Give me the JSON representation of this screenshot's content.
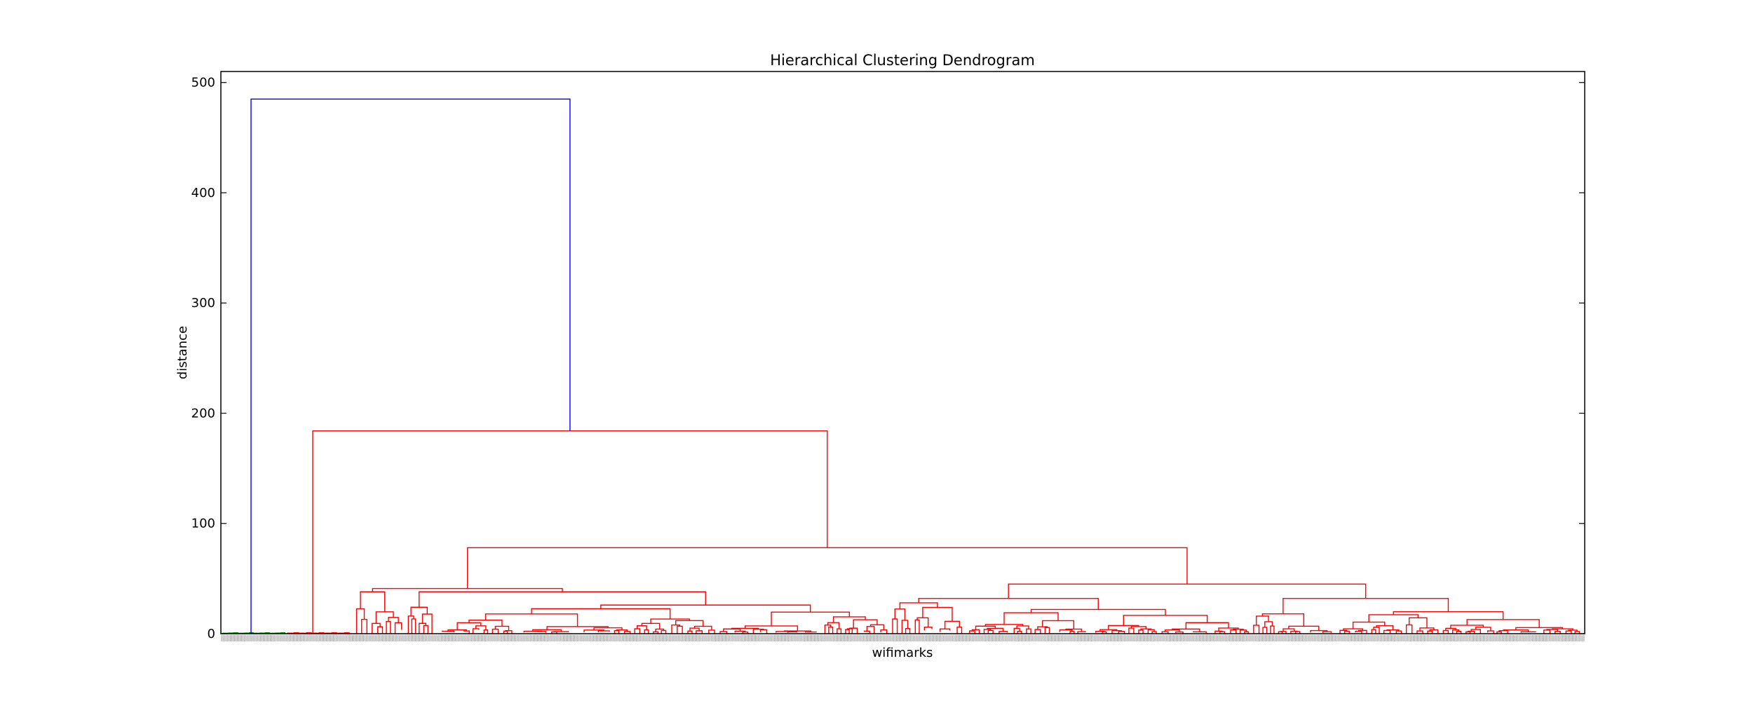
{
  "chart_data": {
    "type": "dendrogram",
    "title": "Hierarchical Clustering Dendrogram",
    "xlabel": "wifimarks",
    "ylabel": "distance",
    "ylim": [
      0,
      510
    ],
    "yticks": [
      0,
      100,
      200,
      300,
      400,
      500
    ],
    "grid": false,
    "colors": {
      "root_link": "#0000ff",
      "cluster_links": "#ff0000",
      "small_cluster_links": "#008000",
      "axes": "#000000",
      "background": "#ffffff"
    },
    "leaf_count_approx": 950,
    "leaf_labels_legible": false,
    "top_merges": [
      {
        "name": "root",
        "height": 485,
        "color": "blue",
        "left_child": "small-cluster",
        "right_child": "main-cluster"
      },
      {
        "name": "main-cluster",
        "height": 184,
        "color": "red",
        "left_child": "left-branch",
        "right_child": "right-branch"
      },
      {
        "name": "right-branch",
        "height": 78,
        "color": "red",
        "left_child": "right-left-branch",
        "right_child": "right-right-branch"
      },
      {
        "name": "right-right-branch",
        "height": 45,
        "color": "red"
      },
      {
        "name": "right-left-branch",
        "height": 41,
        "color": "red"
      },
      {
        "name": "right-right-a",
        "height": 32,
        "color": "red"
      },
      {
        "name": "right-right-b",
        "height": 32,
        "color": "red"
      },
      {
        "name": "right-left-a",
        "height": 38,
        "color": "red"
      },
      {
        "name": "small-cluster",
        "height": 0.5,
        "color": "green"
      },
      {
        "name": "left-branch",
        "height": 0.5,
        "color": "red"
      }
    ]
  }
}
